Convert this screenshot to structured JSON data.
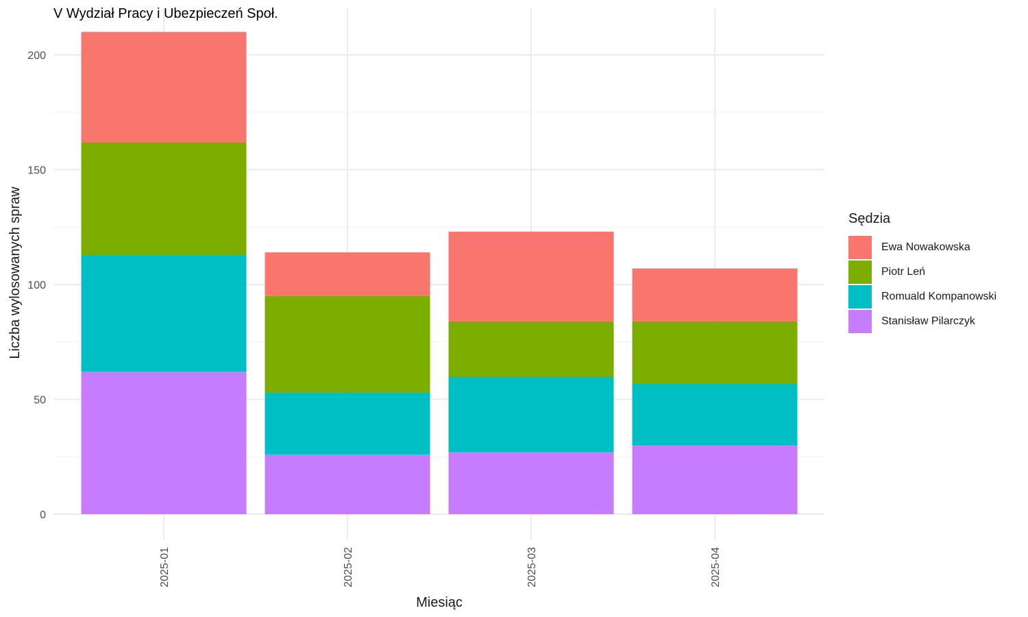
{
  "chart_data": {
    "type": "bar",
    "stacked": true,
    "title": "V Wydział Pracy i Ubezpieczeń Społ.",
    "xlabel": "Miesiąc",
    "ylabel": "Liczba wylosowanych spraw",
    "categories": [
      "2025-01",
      "2025-02",
      "2025-03",
      "2025-04"
    ],
    "ylim": [
      0,
      210
    ],
    "yticks": [
      0,
      50,
      100,
      150,
      200
    ],
    "grid": true,
    "legend": {
      "title": "Sędzia",
      "position": "right"
    },
    "series": [
      {
        "name": "Stanisław Pilarczyk",
        "color": "#C77CFF",
        "values": [
          62,
          26,
          27,
          30
        ]
      },
      {
        "name": "Romuald Kompanowski",
        "color": "#00BFC4",
        "values": [
          51,
          27,
          33,
          27
        ]
      },
      {
        "name": "Piotr Leń",
        "color": "#7CAE00",
        "values": [
          49,
          42,
          24,
          27
        ]
      },
      {
        "name": "Ewa Nowakowska",
        "color": "#F8766D",
        "values": [
          48,
          19,
          39,
          23
        ]
      }
    ],
    "legend_order": [
      "Ewa Nowakowska",
      "Piotr Leń",
      "Romuald Kompanowski",
      "Stanisław Pilarczyk"
    ]
  }
}
